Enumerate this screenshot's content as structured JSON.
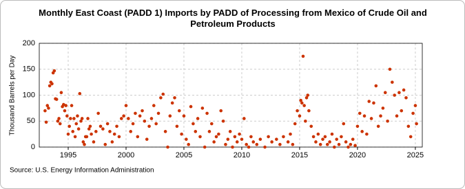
{
  "chart_data": {
    "type": "scatter",
    "title": "Monthly East Coast (PADD 1) Imports by PADD of Processing from Mexico of Crude Oil and Petroleum Products",
    "y_label": "Thousand Barrels per Day",
    "source": "Source: U.S. Energy Information Administration",
    "color": "#cc3300",
    "grid": true,
    "xlim": [
      1992.5,
      2025.6
    ],
    "xticks": [
      1995,
      2000,
      2005,
      2010,
      2015,
      2020,
      2025
    ],
    "ylim": [
      0,
      200
    ],
    "yticks": [
      0,
      50,
      100,
      150,
      200
    ],
    "x": [
      1993.0,
      1993.1,
      1993.2,
      1993.3,
      1993.4,
      1993.5,
      1993.6,
      1993.7,
      1993.8,
      1993.9,
      1994.0,
      1994.1,
      1994.2,
      1994.3,
      1994.4,
      1994.5,
      1994.6,
      1994.7,
      1994.8,
      1994.9,
      1995.0,
      1995.1,
      1995.2,
      1995.3,
      1995.4,
      1995.5,
      1995.6,
      1995.7,
      1995.8,
      1995.9,
      1996.0,
      1996.1,
      1996.2,
      1996.3,
      1996.4,
      1996.5,
      1996.6,
      1996.7,
      1996.8,
      1996.9,
      1997.0,
      1997.2,
      1997.4,
      1997.6,
      1997.8,
      1998.0,
      1998.2,
      1998.4,
      1998.6,
      1998.8,
      1999.0,
      1999.2,
      1999.4,
      1999.6,
      1999.8,
      2000.0,
      2000.2,
      2000.4,
      2000.6,
      2000.8,
      2001.0,
      2001.2,
      2001.4,
      2001.6,
      2001.8,
      2002.0,
      2002.2,
      2002.4,
      2002.6,
      2002.8,
      2003.0,
      2003.2,
      2003.4,
      2003.6,
      2003.8,
      2004.0,
      2004.2,
      2004.4,
      2004.6,
      2004.8,
      2005.0,
      2005.2,
      2005.4,
      2005.6,
      2005.8,
      2006.0,
      2006.2,
      2006.4,
      2006.6,
      2006.8,
      2007.0,
      2007.2,
      2007.4,
      2007.6,
      2007.8,
      2008.0,
      2008.2,
      2008.4,
      2008.6,
      2008.8,
      2009.0,
      2009.2,
      2009.4,
      2009.6,
      2009.8,
      2010.0,
      2010.2,
      2010.4,
      2010.6,
      2010.8,
      2011.0,
      2011.3,
      2011.6,
      2012.0,
      2012.3,
      2012.6,
      2013.0,
      2013.3,
      2013.6,
      2014.0,
      2014.2,
      2014.4,
      2014.6,
      2014.8,
      2015.0,
      2015.1,
      2015.2,
      2015.3,
      2015.4,
      2015.5,
      2015.6,
      2015.7,
      2015.8,
      2016.0,
      2016.2,
      2016.4,
      2016.6,
      2016.8,
      2017.0,
      2017.2,
      2017.4,
      2017.6,
      2017.8,
      2018.0,
      2018.2,
      2018.4,
      2018.6,
      2018.8,
      2019.0,
      2019.2,
      2019.4,
      2019.6,
      2019.8,
      2020.0,
      2020.2,
      2020.4,
      2020.6,
      2020.8,
      2021.0,
      2021.2,
      2021.4,
      2021.6,
      2021.8,
      2022.0,
      2022.2,
      2022.4,
      2022.6,
      2022.8,
      2023.0,
      2023.2,
      2023.4,
      2023.6,
      2023.8,
      2024.0,
      2024.2,
      2024.4,
      2024.6,
      2024.8,
      2025.0,
      2025.1
    ],
    "values": [
      70,
      48,
      80,
      75,
      118,
      125,
      122,
      143,
      147,
      93,
      92,
      50,
      55,
      45,
      105,
      78,
      82,
      70,
      80,
      60,
      25,
      40,
      55,
      80,
      30,
      55,
      20,
      45,
      60,
      35,
      103,
      50,
      55,
      10,
      5,
      20,
      20,
      55,
      35,
      40,
      25,
      10,
      30,
      65,
      40,
      35,
      5,
      45,
      30,
      10,
      25,
      40,
      20,
      55,
      60,
      80,
      55,
      30,
      45,
      65,
      20,
      60,
      70,
      50,
      15,
      40,
      55,
      80,
      45,
      65,
      95,
      102,
      30,
      0,
      60,
      85,
      95,
      40,
      70,
      25,
      60,
      15,
      5,
      78,
      45,
      30,
      55,
      20,
      75,
      0,
      65,
      30,
      45,
      10,
      20,
      25,
      70,
      50,
      5,
      15,
      30,
      0,
      20,
      10,
      25,
      15,
      55,
      5,
      0,
      20,
      10,
      5,
      15,
      0,
      20,
      10,
      15,
      5,
      20,
      10,
      25,
      5,
      45,
      70,
      60,
      90,
      85,
      175,
      80,
      50,
      95,
      100,
      70,
      40,
      20,
      10,
      25,
      5,
      15,
      20,
      5,
      10,
      25,
      0,
      15,
      5,
      20,
      45,
      10,
      0,
      5,
      15,
      3,
      40,
      65,
      30,
      60,
      25,
      88,
      55,
      85,
      118,
      40,
      60,
      75,
      105,
      50,
      150,
      125,
      100,
      60,
      105,
      70,
      110,
      95,
      40,
      20,
      65,
      80,
      45
    ]
  }
}
